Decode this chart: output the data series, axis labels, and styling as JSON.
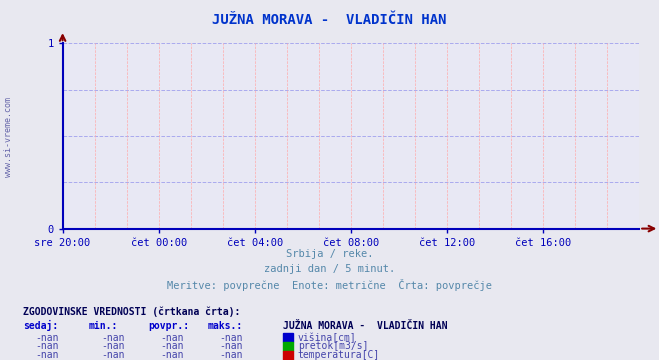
{
  "title": "JUŽNA MORAVA -  VLADIČIN HAN",
  "title_color": "#0033cc",
  "title_fontsize": 10,
  "bg_color": "#e8e8f0",
  "plot_bg_color": "#e8e8f4",
  "xmin": 0,
  "xmax": 288,
  "ymin": 0,
  "ymax": 1,
  "yticks": [
    0,
    1
  ],
  "xtick_labels": [
    "sre 20:00",
    "čet 00:00",
    "čet 04:00",
    "čet 08:00",
    "čet 12:00",
    "čet 16:00"
  ],
  "xtick_positions": [
    0,
    48,
    96,
    144,
    192,
    240
  ],
  "grid_color_h": "#aaaaee",
  "grid_color_v": "#ffaaaa",
  "axis_color": "#0000bb",
  "tick_label_color": "#0000bb",
  "watermark": "www.si-vreme.com",
  "watermark_color": "#6666aa",
  "subtitle_lines": [
    "Srbija / reke.",
    "zadnji dan / 5 minut.",
    "Meritve: povprečne  Enote: metrične  Črta: povprečje"
  ],
  "subtitle_color": "#5588aa",
  "subtitle_fontsize": 7.5,
  "table_header": "ZGODOVINSKE VREDNOSTI (črtkana črta):",
  "table_header_color": "#000055",
  "table_col_headers": [
    "sedaj:",
    "min.:",
    "povpr.:",
    "maks.:"
  ],
  "table_col_header_color": "#0000cc",
  "table_values": [
    "-nan",
    "-nan",
    "-nan",
    "-nan"
  ],
  "table_value_color": "#4444aa",
  "legend_title": "JUŽNA MORAVA -  VLADIČIN HAN",
  "legend_title_color": "#000055",
  "legend_items": [
    "višina[cm]",
    "pretok[m3/s]",
    "temperatura[C]"
  ],
  "legend_colors": [
    "#0000cc",
    "#00aa00",
    "#cc0000"
  ],
  "arrow_color": "#880000",
  "fontname": "monospace"
}
